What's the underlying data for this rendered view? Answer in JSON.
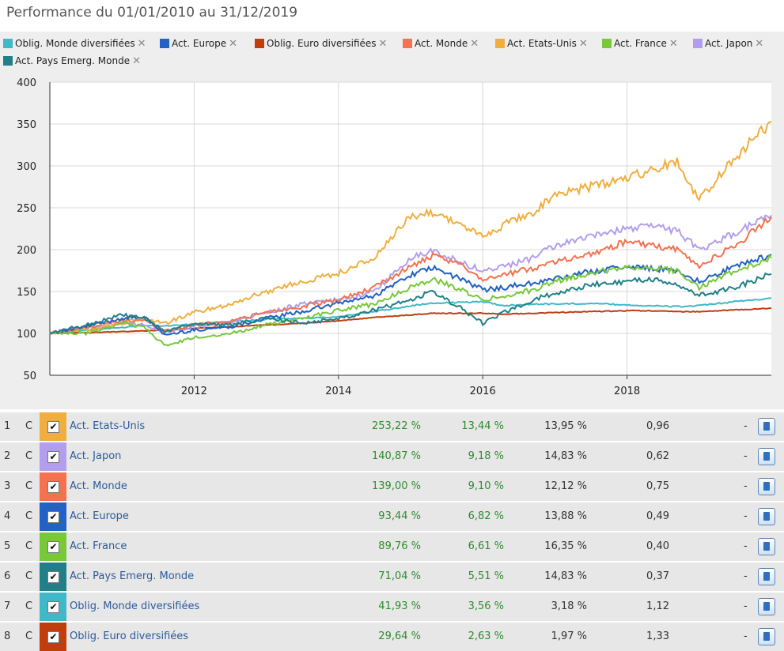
{
  "title": "Performance du 01/01/2010 au 31/12/2019",
  "chart_data": {
    "type": "line",
    "title": "Performance du 01/01/2010 au 31/12/2019",
    "xlabel": "",
    "ylabel": "",
    "xlim": [
      2010,
      2020
    ],
    "ylim": [
      50,
      400
    ],
    "yticks": [
      50,
      100,
      150,
      200,
      250,
      300,
      350,
      400
    ],
    "xticks": [
      2012,
      2014,
      2016,
      2018
    ],
    "grid": true,
    "legend_position": "top",
    "x": [
      2010.0,
      2010.5,
      2011.0,
      2011.3,
      2011.6,
      2012.0,
      2012.5,
      2013.0,
      2013.5,
      2014.0,
      2014.5,
      2015.0,
      2015.3,
      2015.7,
      2016.0,
      2016.3,
      2016.7,
      2017.0,
      2017.5,
      2018.0,
      2018.3,
      2018.7,
      2019.0,
      2019.5,
      2020.0
    ],
    "series": [
      {
        "name": "Oblig. Monde diversifiées",
        "color": "#3fb8c8",
        "values": [
          100,
          104,
          107,
          110,
          109,
          111,
          114,
          117,
          118,
          120,
          126,
          133,
          136,
          137,
          138,
          133,
          135,
          135,
          136,
          134,
          133,
          132,
          133,
          138,
          142
        ]
      },
      {
        "name": "Act. Europe",
        "color": "#2361c2",
        "values": [
          100,
          108,
          118,
          120,
          98,
          104,
          108,
          118,
          126,
          136,
          145,
          170,
          178,
          165,
          152,
          155,
          160,
          165,
          174,
          180,
          178,
          175,
          162,
          180,
          194
        ]
      },
      {
        "name": "Oblig. Euro diversifiées",
        "color": "#c13d0c",
        "values": [
          100,
          101,
          102,
          103,
          104,
          106,
          108,
          110,
          112,
          115,
          119,
          122,
          124,
          124,
          124,
          123,
          124,
          125,
          126,
          127,
          127,
          126,
          126,
          128,
          130
        ]
      },
      {
        "name": "Act. Monde",
        "color": "#f4724f",
        "values": [
          100,
          107,
          115,
          116,
          103,
          110,
          115,
          125,
          132,
          140,
          155,
          180,
          192,
          182,
          165,
          170,
          178,
          186,
          195,
          210,
          205,
          200,
          180,
          205,
          239
        ]
      },
      {
        "name": "Act. Etats-Unis",
        "color": "#f0ae3e",
        "values": [
          100,
          105,
          112,
          118,
          112,
          125,
          135,
          150,
          162,
          172,
          190,
          240,
          245,
          230,
          215,
          230,
          245,
          265,
          275,
          285,
          295,
          305,
          260,
          310,
          353
        ]
      },
      {
        "name": "Act. France",
        "color": "#78c83a",
        "values": [
          100,
          100,
          112,
          108,
          85,
          95,
          100,
          110,
          118,
          128,
          135,
          155,
          165,
          152,
          140,
          145,
          152,
          162,
          172,
          180,
          178,
          175,
          155,
          175,
          190
        ]
      },
      {
        "name": "Act. Japon",
        "color": "#b29eec",
        "values": [
          100,
          108,
          112,
          110,
          102,
          108,
          112,
          125,
          135,
          140,
          150,
          190,
          198,
          185,
          175,
          180,
          190,
          205,
          215,
          225,
          230,
          222,
          200,
          220,
          241
        ]
      },
      {
        "name": "Act. Pays Emerg. Monde",
        "color": "#217f88",
        "values": [
          100,
          110,
          122,
          118,
          102,
          112,
          110,
          118,
          112,
          118,
          128,
          140,
          150,
          130,
          112,
          125,
          140,
          148,
          158,
          162,
          165,
          158,
          145,
          155,
          171
        ]
      }
    ]
  },
  "legend_remove_symbol": "✕",
  "table": {
    "rows": [
      {
        "rank": "1",
        "c": "C",
        "color": "#f0ae3e",
        "check": "✔",
        "name": "Act. Etats-Unis",
        "perf": "253,22 %",
        "annual": "13,44 %",
        "volatility": "13,95 %",
        "ratio": "0,96",
        "dash": "-"
      },
      {
        "rank": "2",
        "c": "C",
        "color": "#b29eec",
        "check": "✔",
        "name": "Act. Japon",
        "perf": "140,87 %",
        "annual": "9,18 %",
        "volatility": "14,83 %",
        "ratio": "0,62",
        "dash": "-"
      },
      {
        "rank": "3",
        "c": "C",
        "color": "#f4724f",
        "check": "✔",
        "name": "Act. Monde",
        "perf": "139,00 %",
        "annual": "9,10 %",
        "volatility": "12,12 %",
        "ratio": "0,75",
        "dash": "-"
      },
      {
        "rank": "4",
        "c": "C",
        "color": "#2361c2",
        "check": "✔",
        "name": "Act. Europe",
        "perf": "93,44 %",
        "annual": "6,82 %",
        "volatility": "13,88 %",
        "ratio": "0,49",
        "dash": "-"
      },
      {
        "rank": "5",
        "c": "C",
        "color": "#78c83a",
        "check": "✔",
        "name": "Act. France",
        "perf": "89,76 %",
        "annual": "6,61 %",
        "volatility": "16,35 %",
        "ratio": "0,40",
        "dash": "-"
      },
      {
        "rank": "6",
        "c": "C",
        "color": "#217f88",
        "check": "✔",
        "name": "Act. Pays Emerg. Monde",
        "perf": "71,04 %",
        "annual": "5,51 %",
        "volatility": "14,83 %",
        "ratio": "0,37",
        "dash": "-"
      },
      {
        "rank": "7",
        "c": "C",
        "color": "#3fb8c8",
        "check": "✔",
        "name": "Oblig. Monde diversifiées",
        "perf": "41,93 %",
        "annual": "3,56 %",
        "volatility": "3,18 %",
        "ratio": "1,12",
        "dash": "-"
      },
      {
        "rank": "8",
        "c": "C",
        "color": "#c13d0c",
        "check": "✔",
        "name": "Oblig. Euro diversifiées",
        "perf": "29,64 %",
        "annual": "2,63 %",
        "volatility": "1,97 %",
        "ratio": "1,33",
        "dash": "-"
      }
    ]
  }
}
